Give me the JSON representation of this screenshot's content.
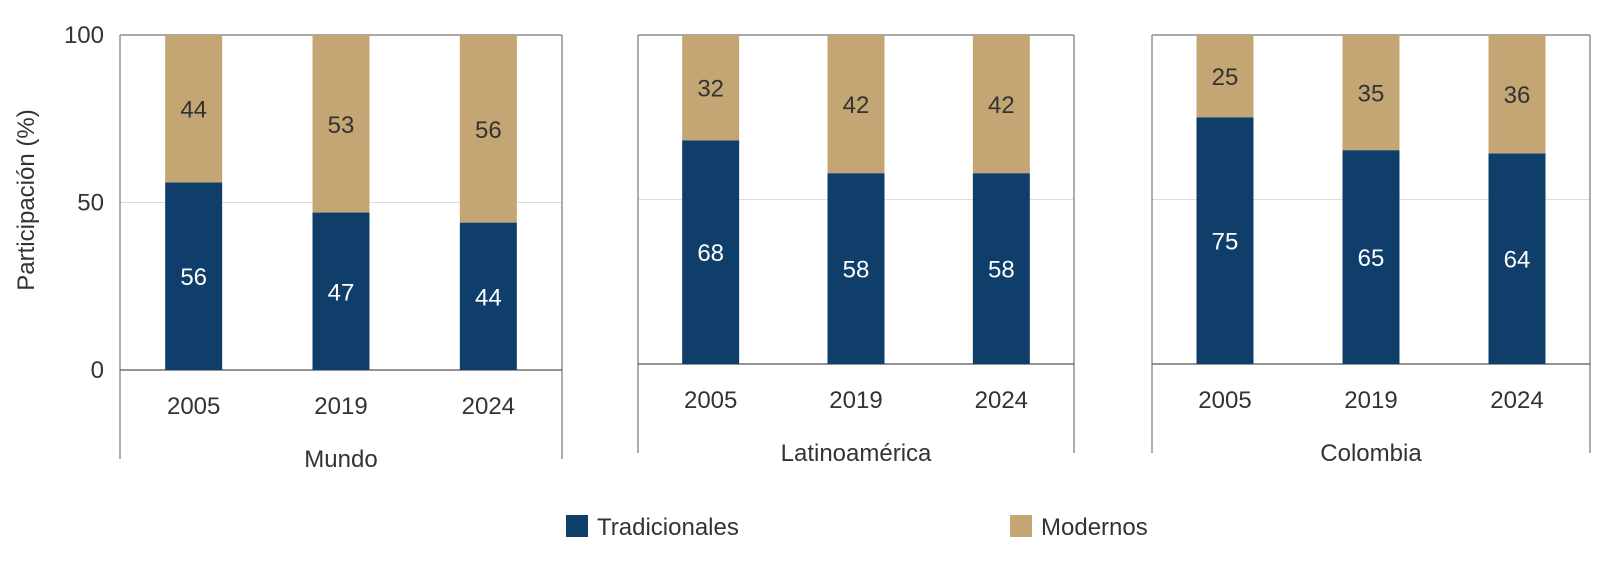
{
  "chart_data": {
    "type": "bar",
    "stacked": true,
    "ylabel": "Participación (%)",
    "ylim": [
      0,
      100
    ],
    "yticks": [
      0,
      50,
      100
    ],
    "grid": true,
    "legend_position": "bottom",
    "colors": {
      "Tradicionales": "#0f3e6b",
      "Modernos": "#c4a674",
      "label_dark": "#333333",
      "label_light": "#ffffff"
    },
    "legend": [
      "Tradicionales",
      "Modernos"
    ],
    "panels": [
      {
        "group": "Mundo",
        "categories": [
          "2005",
          "2019",
          "2024"
        ],
        "series": [
          {
            "name": "Tradicionales",
            "values": [
              56,
              47,
              44
            ]
          },
          {
            "name": "Modernos",
            "values": [
              44,
              53,
              56
            ]
          }
        ]
      },
      {
        "group": "Latinoamérica",
        "categories": [
          "2005",
          "2019",
          "2024"
        ],
        "series": [
          {
            "name": "Tradicionales",
            "values": [
              68,
              58,
              58
            ]
          },
          {
            "name": "Modernos",
            "values": [
              32,
              42,
              42
            ]
          }
        ]
      },
      {
        "group": "Colombia",
        "categories": [
          "2005",
          "2019",
          "2024"
        ],
        "series": [
          {
            "name": "Tradicionales",
            "values": [
              75,
              65,
              64
            ]
          },
          {
            "name": "Modernos",
            "values": [
              25,
              35,
              36
            ]
          }
        ]
      }
    ]
  }
}
